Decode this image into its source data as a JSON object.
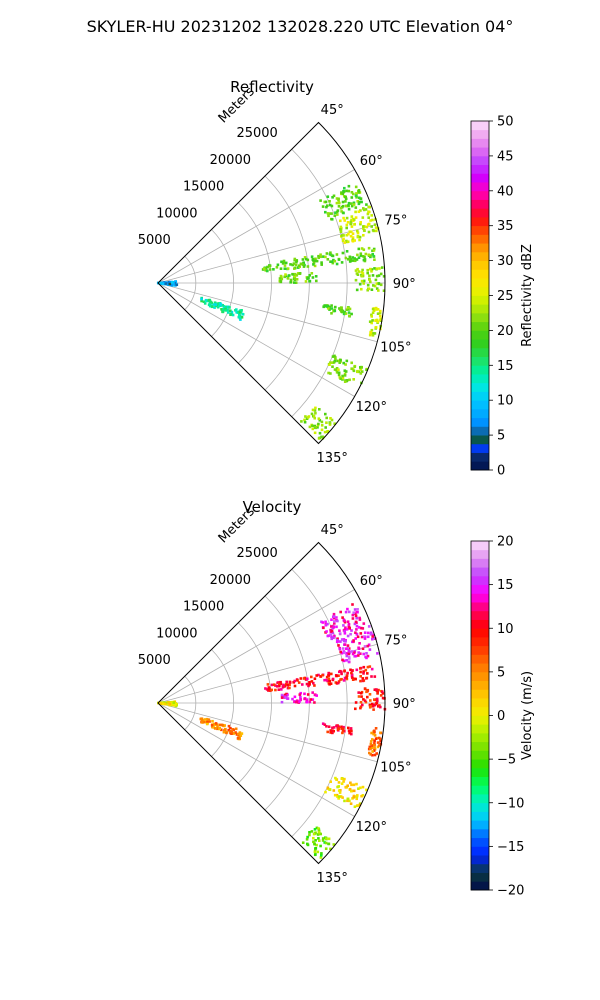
{
  "title": "SKYLER-HU  20231202  132028.220 UTC Elevation 04°",
  "chart_data": [
    {
      "type": "heatmap",
      "projection": "polar-sector",
      "title": "Reflectivity",
      "radial_label": "Meters",
      "theta_range_deg": [
        45,
        135
      ],
      "r_max": 30000,
      "r_ticks": [
        "5000",
        "10000",
        "15000",
        "20000",
        "25000"
      ],
      "theta_ticks": [
        "45°",
        "60°",
        "75°",
        "90°",
        "105°",
        "120°",
        "135°"
      ],
      "grid": true,
      "colorbar": {
        "label": "Reflectivity dBZ",
        "range": [
          0,
          50
        ],
        "ticks": [
          "0",
          "5",
          "10",
          "15",
          "20",
          "25",
          "30",
          "35",
          "40",
          "45",
          "50"
        ]
      },
      "echo_regions": [
        {
          "theta_deg": [
            63,
            70
          ],
          "r": [
            24000,
            29500
          ],
          "value_dbz": 20
        },
        {
          "theta_deg": [
            70,
            78
          ],
          "r": [
            25000,
            30000
          ],
          "value_dbz": 24
        },
        {
          "theta_deg": [
            80,
            84
          ],
          "r": [
            14000,
            29000
          ],
          "value_dbz": 20
        },
        {
          "theta_deg": [
            86,
            90
          ],
          "r": [
            16000,
            21000
          ],
          "value_dbz": 21
        },
        {
          "theta_deg": [
            86,
            92
          ],
          "r": [
            26000,
            30000
          ],
          "value_dbz": 22
        },
        {
          "theta_deg": [
            97,
            100
          ],
          "r": [
            22000,
            26000
          ],
          "value_dbz": 20
        },
        {
          "theta_deg": [
            96,
            104
          ],
          "r": [
            28500,
            30000
          ],
          "value_dbz": 24
        },
        {
          "theta_deg": [
            108,
            114
          ],
          "r": [
            6000,
            12000
          ],
          "value_dbz": 14
        },
        {
          "theta_deg": [
            112,
            118
          ],
          "r": [
            25000,
            30000
          ],
          "value_dbz": 22
        },
        {
          "theta_deg": [
            128,
            134
          ],
          "r": [
            26000,
            30000
          ],
          "value_dbz": 22
        },
        {
          "theta_deg": [
            85,
            100
          ],
          "r": [
            0,
            2500
          ],
          "value_dbz": 8
        }
      ]
    },
    {
      "type": "heatmap",
      "projection": "polar-sector",
      "title": "Velocity",
      "radial_label": "Meters",
      "theta_range_deg": [
        45,
        135
      ],
      "r_max": 30000,
      "r_ticks": [
        "5000",
        "10000",
        "15000",
        "20000",
        "25000"
      ],
      "theta_ticks": [
        "45°",
        "60°",
        "75°",
        "90°",
        "105°",
        "120°",
        "135°"
      ],
      "grid": true,
      "colorbar": {
        "label": "Velocity (m/s)",
        "range": [
          -20,
          20
        ],
        "ticks": [
          "−20",
          "−15",
          "−10",
          "−5",
          "0",
          "5",
          "10",
          "15",
          "20"
        ]
      },
      "echo_regions": [
        {
          "theta_deg": [
            63,
            70
          ],
          "r": [
            24000,
            29500
          ],
          "value_ms": 14
        },
        {
          "theta_deg": [
            70,
            78
          ],
          "r": [
            25000,
            30000
          ],
          "value_ms": 14
        },
        {
          "theta_deg": [
            80,
            84
          ],
          "r": [
            14000,
            29000
          ],
          "value_ms": 10
        },
        {
          "theta_deg": [
            86,
            90
          ],
          "r": [
            16000,
            21000
          ],
          "value_ms": 14
        },
        {
          "theta_deg": [
            86,
            92
          ],
          "r": [
            26000,
            30000
          ],
          "value_ms": 9
        },
        {
          "theta_deg": [
            97,
            100
          ],
          "r": [
            22000,
            26000
          ],
          "value_ms": 10
        },
        {
          "theta_deg": [
            96,
            104
          ],
          "r": [
            28500,
            30000
          ],
          "value_ms": 6
        },
        {
          "theta_deg": [
            108,
            114
          ],
          "r": [
            6000,
            12000
          ],
          "value_ms": 5
        },
        {
          "theta_deg": [
            112,
            118
          ],
          "r": [
            25000,
            30000
          ],
          "value_ms": 1
        },
        {
          "theta_deg": [
            128,
            134
          ],
          "r": [
            26000,
            30000
          ],
          "value_ms": -4
        },
        {
          "theta_deg": [
            85,
            100
          ],
          "r": [
            0,
            2500
          ],
          "value_ms": 0
        }
      ]
    }
  ]
}
